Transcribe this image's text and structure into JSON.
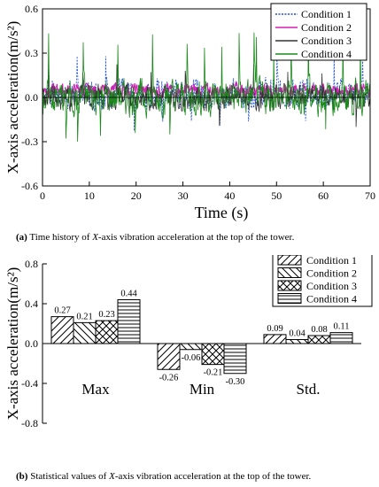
{
  "captions": {
    "a_prefix": "(a)",
    "a_text": " Time history of ",
    "a_axis": "X",
    "a_rest": "-axis vibration acceleration at the top of the tower.",
    "b_prefix": "(b)",
    "b_text": " Statistical values of ",
    "b_axis": "X",
    "b_rest": "-axis vibration acceleration at the top of the tower."
  },
  "chart_data": [
    {
      "type": "line",
      "title": "",
      "xlabel": "Time (s)",
      "ylabel": "X-axis acceleration(m/s²)",
      "xlim": [
        0,
        70
      ],
      "ylim": [
        -0.6,
        0.6
      ],
      "xticks": [
        "0",
        "10",
        "20",
        "30",
        "40",
        "50",
        "60",
        "70"
      ],
      "yticks": [
        "0.6",
        "0.3",
        "0.0",
        "-0.3",
        "-0.6"
      ],
      "legend_position": "top-right",
      "grid": false,
      "series": [
        {
          "name": "Condition 1",
          "color": "#1f4fd6",
          "dash": "dotted",
          "amplitude": 0.09,
          "max": 0.27,
          "min": -0.26
        },
        {
          "name": "Condition 2",
          "color": "#d61fb4",
          "dash": "solid",
          "amplitude": 0.04,
          "max": 0.21,
          "min": -0.06
        },
        {
          "name": "Condition 3",
          "color": "#333333",
          "dash": "solid",
          "amplitude": 0.08,
          "max": 0.23,
          "min": -0.21
        },
        {
          "name": "Condition 4",
          "color": "#1a8a1a",
          "dash": "solid",
          "amplitude": 0.11,
          "max": 0.44,
          "min": -0.3
        }
      ]
    },
    {
      "type": "bar",
      "title": "",
      "xlabel": "",
      "ylabel": "X-axis acceleration(m/s²)",
      "categories": [
        "Max",
        "Min",
        "Std."
      ],
      "ylim": [
        -0.8,
        0.8
      ],
      "yticks": [
        "0.8",
        "0.4",
        "0.0",
        "-0.4",
        "-0.8"
      ],
      "legend_position": "top-right",
      "grid": false,
      "series": [
        {
          "name": "Condition 1",
          "pattern": "diag-back",
          "values": [
            0.27,
            -0.26,
            0.09
          ],
          "labels": [
            "0.27",
            "-0.26",
            "0.09"
          ]
        },
        {
          "name": "Condition 2",
          "pattern": "diag-fwd",
          "values": [
            0.21,
            -0.06,
            0.04
          ],
          "labels": [
            "0.21",
            "-0.06",
            "0.04"
          ]
        },
        {
          "name": "Condition 3",
          "pattern": "cross",
          "values": [
            0.23,
            -0.21,
            0.08
          ],
          "labels": [
            "0.23",
            "-0.21",
            "0.08"
          ]
        },
        {
          "name": "Condition 4",
          "pattern": "horiz",
          "values": [
            0.44,
            -0.3,
            0.11
          ],
          "labels": [
            "0.44",
            "-0.30",
            "0.11"
          ]
        }
      ]
    }
  ]
}
